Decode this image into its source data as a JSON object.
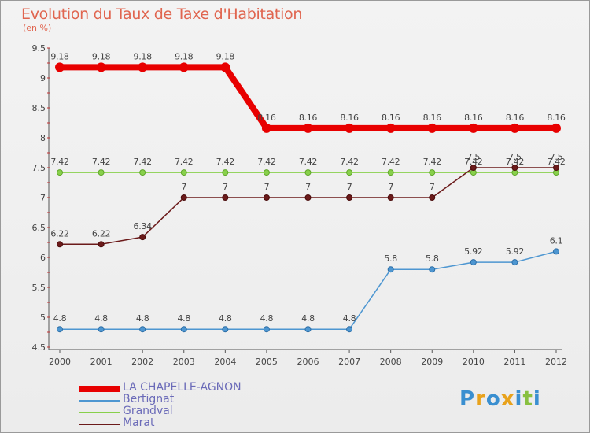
{
  "title": "Evolution du Taux de Taxe d'Habitation",
  "subtitle": "(en %)",
  "brand": "Proxiti",
  "colors": {
    "title": "#e0654f",
    "legend_text": "#6a6ab8",
    "axis": "#444444"
  },
  "chart_data": {
    "type": "line",
    "title": "Evolution du Taux de Taxe d'Habitation",
    "subtitle": "(en %)",
    "x": [
      "2000",
      "2001",
      "2002",
      "2003",
      "2004",
      "2005",
      "2006",
      "2007",
      "2008",
      "2009",
      "2010",
      "2011",
      "2012"
    ],
    "ylim": [
      4.5,
      9.5
    ],
    "yticks": [
      "4.5",
      "5",
      "5.5",
      "6",
      "6.5",
      "7",
      "7.5",
      "8",
      "8.5",
      "9",
      "9.5"
    ],
    "legend_position": "bottom-left",
    "series": [
      {
        "name": "LA CHAPELLE-AGNON",
        "color": "#e80000",
        "values": [
          9.18,
          9.18,
          9.18,
          9.18,
          9.18,
          8.16,
          8.16,
          8.16,
          8.16,
          8.16,
          8.16,
          8.16,
          8.16
        ],
        "labels": [
          "9.18",
          "9.18",
          "9.18",
          "9.18",
          "9.18",
          "8.16",
          "8.16",
          "8.16",
          "8.16",
          "8.16",
          "8.16",
          "8.16",
          "8.16"
        ]
      },
      {
        "name": "Bertignat",
        "color": "#4d96d1",
        "values": [
          4.8,
          4.8,
          4.8,
          4.8,
          4.8,
          4.8,
          4.8,
          4.8,
          5.8,
          5.8,
          5.92,
          5.92,
          6.1
        ],
        "labels": [
          "4.8",
          "4.8",
          "4.8",
          "4.8",
          "4.8",
          "4.8",
          "4.8",
          "4.8",
          "5.8",
          "5.8",
          "5.92",
          "5.92",
          "6.1"
        ]
      },
      {
        "name": "Grandval",
        "color": "#88d04b",
        "values": [
          7.42,
          7.42,
          7.42,
          7.42,
          7.42,
          7.42,
          7.42,
          7.42,
          7.42,
          7.42,
          7.42,
          7.42,
          7.42
        ],
        "labels": [
          "7.42",
          "7.42",
          "7.42",
          "7.42",
          "7.42",
          "7.42",
          "7.42",
          "7.42",
          "7.42",
          "7.42",
          "7.42",
          "7.42",
          "7.42"
        ]
      },
      {
        "name": "Marat",
        "color": "#6b1a1a",
        "values": [
          6.22,
          6.22,
          6.34,
          7,
          7,
          7,
          7,
          7,
          7,
          7,
          7.5,
          7.5,
          7.5
        ],
        "labels": [
          "6.22",
          "6.22",
          "6.34",
          "7",
          "7",
          "7",
          "7",
          "7",
          "7",
          "7",
          "7.5",
          "7.5",
          "7.5"
        ]
      }
    ]
  }
}
